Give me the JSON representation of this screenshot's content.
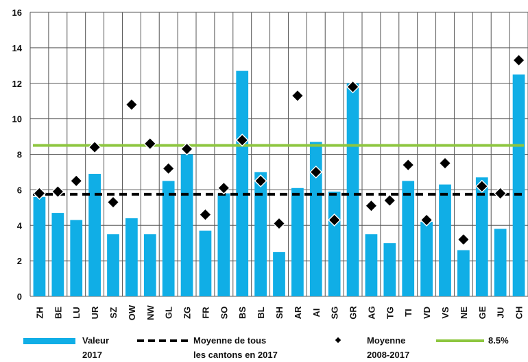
{
  "chart_data": {
    "type": "bar",
    "categories": [
      "ZH",
      "BE",
      "LU",
      "UR",
      "SZ",
      "OW",
      "NW",
      "GL",
      "ZG",
      "FR",
      "SO",
      "BS",
      "BL",
      "SH",
      "AR",
      "AI",
      "SG",
      "GR",
      "AG",
      "TG",
      "TI",
      "VD",
      "VS",
      "NE",
      "GE",
      "JU",
      "CH"
    ],
    "series": [
      {
        "name": "Valeur 2017",
        "type": "bar",
        "color": "#10aee6",
        "values": [
          5.6,
          4.7,
          4.3,
          6.9,
          3.5,
          4.4,
          3.5,
          6.5,
          8.0,
          3.7,
          5.8,
          12.7,
          7.0,
          2.5,
          6.1,
          8.7,
          5.9,
          12.0,
          3.5,
          3.0,
          6.5,
          4.2,
          6.3,
          2.6,
          6.7,
          3.8,
          12.5
        ]
      },
      {
        "name": "Moyenne 2008-2017",
        "type": "scatter",
        "color": "#000000",
        "values": [
          5.8,
          5.9,
          6.5,
          8.4,
          5.3,
          10.8,
          8.6,
          7.2,
          8.3,
          4.6,
          6.1,
          8.8,
          6.5,
          4.1,
          11.3,
          7.0,
          4.3,
          11.8,
          5.1,
          5.4,
          7.4,
          4.3,
          7.5,
          3.2,
          6.2,
          5.8,
          13.3
        ]
      }
    ],
    "reference_lines": [
      {
        "name": "Moyenne de tous les cantons en 2017",
        "value": 5.75,
        "style": "dashed",
        "color": "#000000"
      },
      {
        "name": "8.5%",
        "value": 8.5,
        "style": "solid",
        "color": "#8dc63f"
      }
    ],
    "y_ticks": [
      "0",
      "2",
      "4",
      "6",
      "8",
      "10",
      "12",
      "14",
      "16"
    ],
    "ylim": [
      0,
      16
    ],
    "grid": true,
    "legend": {
      "placement": "bottom",
      "items": [
        {
          "line1": "Valeur",
          "line2": "2017"
        },
        {
          "line1": "Moyenne de tous",
          "line2": "les cantons en 2017"
        },
        {
          "line1": "Moyenne",
          "line2": "2008-2017"
        },
        {
          "line1": "8.5%",
          "line2": ""
        }
      ]
    }
  }
}
